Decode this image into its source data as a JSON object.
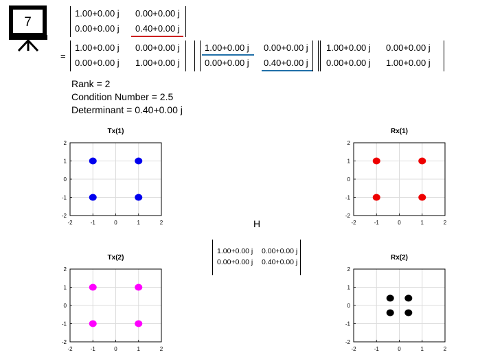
{
  "slide_badge": {
    "number": "7",
    "icon": "presentation-board-icon"
  },
  "top_matrix": {
    "rows": [
      [
        "1.00+0.00 j",
        "0.00+0.00 j"
      ],
      [
        "0.00+0.00 j",
        "0.40+0.00 j"
      ]
    ],
    "highlight_color": "#cc1f1f"
  },
  "svd": {
    "equals": "=",
    "U": [
      [
        "1.00+0.00 j",
        "0.00+0.00 j"
      ],
      [
        "0.00+0.00 j",
        "1.00+0.00 j"
      ]
    ],
    "S": [
      [
        "1.00+0.00 j",
        "0.00+0.00 j"
      ],
      [
        "0.00+0.00 j",
        "0.40+0.00 j"
      ]
    ],
    "V": [
      [
        "1.00+0.00 j",
        "0.00+0.00 j"
      ],
      [
        "0.00+0.00 j",
        "1.00+0.00 j"
      ]
    ],
    "highlight_color": "#1f6fa8"
  },
  "info": {
    "rank": "Rank = 2",
    "condition": "Condition Number = 2.5",
    "determinant": "Determinant = 0.40+0.00 j"
  },
  "channel": {
    "label": "H",
    "rows": [
      [
        "1.00+0.00 j",
        "0.00+0.00 j"
      ],
      [
        "0.00+0.00 j",
        "0.40+0.00 j"
      ]
    ]
  },
  "chart_data": [
    {
      "type": "scatter",
      "title": "Tx(1)",
      "color": "#0000ee",
      "x": [
        -1,
        1,
        -1,
        1
      ],
      "y": [
        1,
        1,
        -1,
        -1
      ],
      "xlim": [
        -2,
        2
      ],
      "ylim": [
        -2,
        2
      ],
      "xticks": [
        "-2",
        "-1",
        "0",
        "1",
        "2"
      ],
      "yticks": [
        "2",
        "1",
        "0",
        "-1",
        "-2"
      ],
      "grid": true
    },
    {
      "type": "scatter",
      "title": "Rx(1)",
      "color": "#ee0000",
      "x": [
        -1,
        1,
        -1,
        1
      ],
      "y": [
        1,
        1,
        -1,
        -1
      ],
      "xlim": [
        -2,
        2
      ],
      "ylim": [
        -2,
        2
      ],
      "xticks": [
        "-2",
        "-1",
        "0",
        "1",
        "2"
      ],
      "yticks": [
        "2",
        "1",
        "0",
        "-1",
        "-2"
      ],
      "grid": true
    },
    {
      "type": "scatter",
      "title": "Tx(2)",
      "color": "#ff00ff",
      "x": [
        -1,
        1,
        -1,
        1
      ],
      "y": [
        1,
        1,
        -1,
        -1
      ],
      "xlim": [
        -2,
        2
      ],
      "ylim": [
        -2,
        2
      ],
      "xticks": [
        "-2",
        "-1",
        "0",
        "1",
        "2"
      ],
      "yticks": [
        "2",
        "1",
        "0",
        "-1",
        "-2"
      ],
      "grid": true
    },
    {
      "type": "scatter",
      "title": "Rx(2)",
      "color": "#000000",
      "x": [
        -0.4,
        0.4,
        -0.4,
        0.4
      ],
      "y": [
        0.4,
        0.4,
        -0.4,
        -0.4
      ],
      "xlim": [
        -2,
        2
      ],
      "ylim": [
        -2,
        2
      ],
      "xticks": [
        "-2",
        "-1",
        "0",
        "1",
        "2"
      ],
      "yticks": [
        "2",
        "1",
        "0",
        "-1",
        "-2"
      ],
      "grid": true
    }
  ]
}
